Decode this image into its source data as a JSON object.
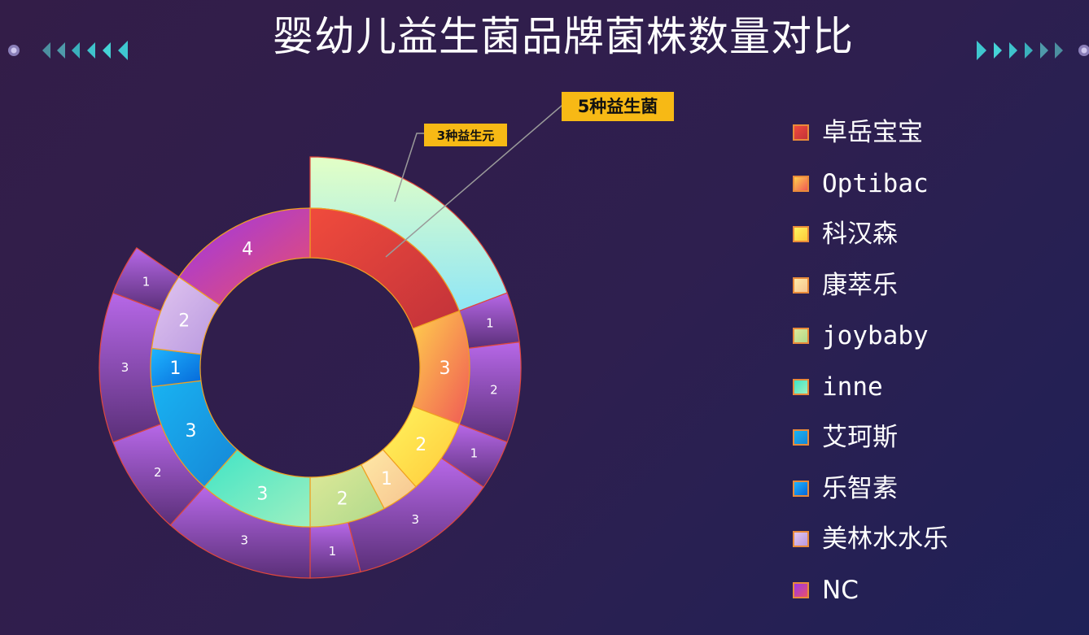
{
  "title": "婴幼儿益生菌品牌菌株数量对比",
  "colors": {
    "ring_border": "#e0473c",
    "inner_border": "#f0a020",
    "callout_bg": "#f7b915",
    "callout_text": "#111111",
    "leader_line": "#9a9a9a",
    "deco_left": "#3fc7cf",
    "deco_right": "#3fc7cf",
    "outer_gradient": [
      "#b768e8",
      "#5a2f78"
    ],
    "top_gradient": [
      "#e3ffc6",
      "#8fe6f6"
    ]
  },
  "legend": [
    {
      "label": "卓岳宝宝",
      "mono": false
    },
    {
      "label": "Optibac",
      "mono": true
    },
    {
      "label": "科汉森",
      "mono": false
    },
    {
      "label": "康萃乐",
      "mono": false
    },
    {
      "label": "joybaby",
      "mono": true
    },
    {
      "label": "inne",
      "mono": true
    },
    {
      "label": "艾珂斯",
      "mono": false
    },
    {
      "label": "乐智素",
      "mono": false
    },
    {
      "label": "美林水水乐",
      "mono": false
    },
    {
      "label": "NC",
      "mono": false
    }
  ],
  "callouts": {
    "probiotics": "5种益生菌",
    "prebiotics": "3种益生元"
  },
  "chart_data": {
    "type": "pie",
    "subtype": "double-ring donut",
    "title": "婴幼儿益生菌品牌菌株数量对比",
    "inner_ring": {
      "categories": [
        "卓岳宝宝",
        "Optibac",
        "科汉森",
        "康萃乐",
        "joybaby",
        "inne",
        "艾珂斯",
        "乐智素",
        "美林水水乐",
        "NC"
      ],
      "values": [
        5,
        3,
        2,
        1,
        2,
        3,
        3,
        1,
        2,
        4
      ],
      "value_labels": [
        "",
        "3",
        "2",
        "1",
        "2",
        "3",
        "3",
        "1",
        "2",
        "4"
      ],
      "colors": [
        [
          "#f04b3c",
          "#c2323a"
        ],
        [
          "#ffcf4d",
          "#f05a55"
        ],
        [
          "#fff45e",
          "#ffc93a"
        ],
        [
          "#ffe9a6",
          "#f6c490"
        ],
        [
          "#dfe998",
          "#aed98c"
        ],
        [
          "#3fe4c6",
          "#9ef0c0"
        ],
        [
          "#19b3f2",
          "#1686d6"
        ],
        [
          "#1fb6ff",
          "#0566d8"
        ],
        [
          "#e2c6f0",
          "#b898df"
        ],
        [
          "#9a37ea",
          "#ec4f6a"
        ]
      ]
    },
    "outer_ring": {
      "values": [
        5,
        1,
        2,
        1,
        3,
        1,
        3,
        2,
        3,
        1
      ],
      "value_labels": [
        "",
        "1",
        "2",
        "1",
        "3",
        "1",
        "3",
        "2",
        "3",
        "1"
      ]
    }
  }
}
